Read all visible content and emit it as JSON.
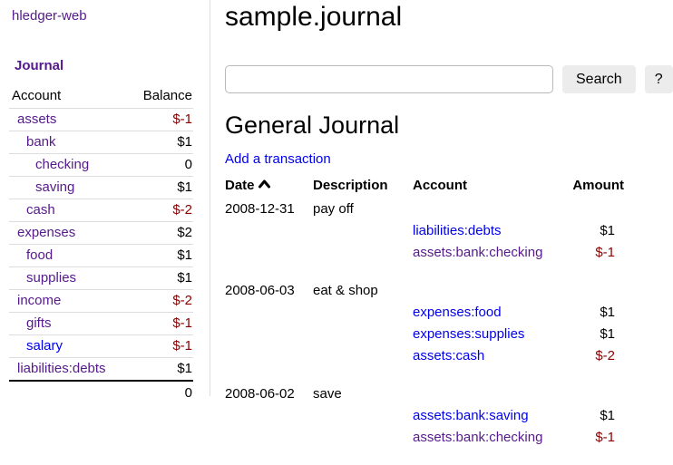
{
  "colors": {
    "link": "#0000EE",
    "visited": "#551A8B",
    "negative": "#8B0000"
  },
  "sidebar": {
    "brand": "hledger-web",
    "section_title": "Journal",
    "table": {
      "headers": [
        "Account",
        "Balance"
      ],
      "rows": [
        {
          "account": "assets",
          "balance": "$-1",
          "indent": 0,
          "negative": true,
          "visited": true
        },
        {
          "account": "bank",
          "balance": "$1",
          "indent": 1,
          "negative": false,
          "visited": true
        },
        {
          "account": "checking",
          "balance": "0",
          "indent": 2,
          "negative": false,
          "visited": true
        },
        {
          "account": "saving",
          "balance": "$1",
          "indent": 2,
          "negative": false,
          "visited": true
        },
        {
          "account": "cash",
          "balance": "$-2",
          "indent": 1,
          "negative": true,
          "visited": true
        },
        {
          "account": "expenses",
          "balance": "$2",
          "indent": 0,
          "negative": false,
          "visited": true
        },
        {
          "account": "food",
          "balance": "$1",
          "indent": 1,
          "negative": false,
          "visited": true
        },
        {
          "account": "supplies",
          "balance": "$1",
          "indent": 1,
          "negative": false,
          "visited": true
        },
        {
          "account": "income",
          "balance": "$-2",
          "indent": 0,
          "negative": true,
          "visited": true
        },
        {
          "account": "gifts",
          "balance": "$-1",
          "indent": 1,
          "negative": true,
          "visited": true
        },
        {
          "account": "salary",
          "balance": "$-1",
          "indent": 1,
          "negative": true,
          "visited": false
        },
        {
          "account": "liabilities:debts",
          "balance": "$1",
          "indent": 0,
          "negative": false,
          "visited": true
        }
      ],
      "total": "0"
    }
  },
  "main": {
    "title": "sample.journal",
    "search": {
      "value": "",
      "button_label": "Search",
      "help_label": "?"
    },
    "journal": {
      "heading": "General Journal",
      "add_link": "Add a transaction",
      "columns": [
        "Date",
        "Description",
        "Account",
        "Amount"
      ],
      "sort_icon": "chevron-up-icon",
      "sort_column": "Date",
      "transactions": [
        {
          "date": "2008-12-31",
          "description": "pay off",
          "postings": [
            {
              "account": "liabilities:debts",
              "amount": "$1",
              "negative": false,
              "visited": false
            },
            {
              "account": "assets:bank:checking",
              "amount": "$-1",
              "negative": true,
              "visited": true
            }
          ]
        },
        {
          "date": "2008-06-03",
          "description": "eat & shop",
          "postings": [
            {
              "account": "expenses:food",
              "amount": "$1",
              "negative": false,
              "visited": false
            },
            {
              "account": "expenses:supplies",
              "amount": "$1",
              "negative": false,
              "visited": false
            },
            {
              "account": "assets:cash",
              "amount": "$-2",
              "negative": true,
              "visited": false
            }
          ]
        },
        {
          "date": "2008-06-02",
          "description": "save",
          "postings": [
            {
              "account": "assets:bank:saving",
              "amount": "$1",
              "negative": false,
              "visited": false
            },
            {
              "account": "assets:bank:checking",
              "amount": "$-1",
              "negative": true,
              "visited": true
            }
          ]
        }
      ]
    }
  }
}
